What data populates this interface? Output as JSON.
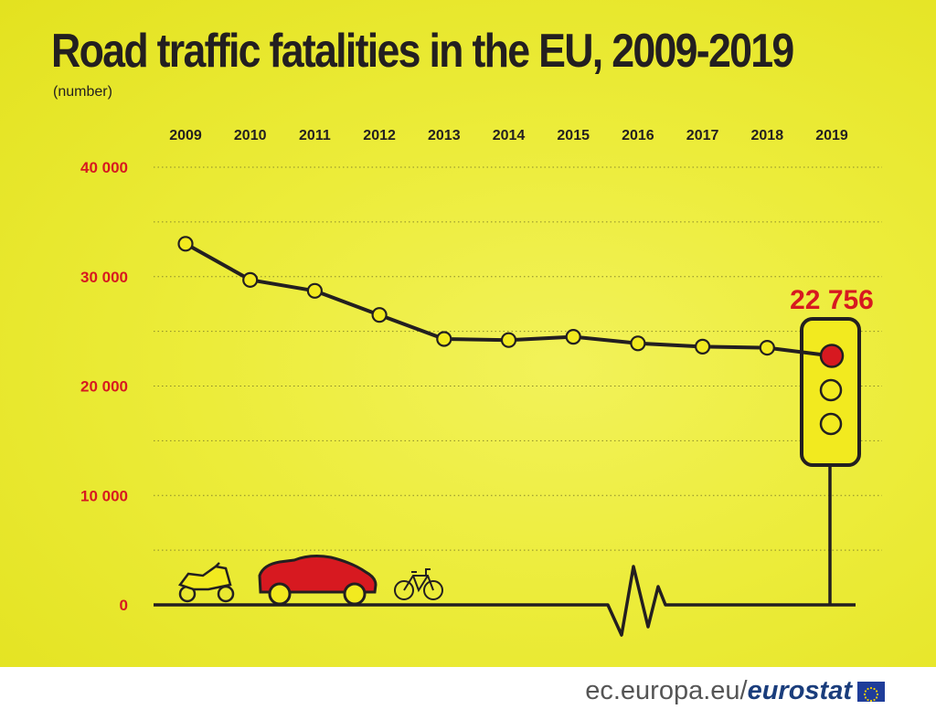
{
  "colors": {
    "background": "#ecec3a",
    "line": "#231f20",
    "marker": "#f2ea1f",
    "highlight": "#d71920",
    "car": "#d71920"
  },
  "icons": [
    "motorbike-icon",
    "car-icon",
    "bicycle-icon",
    "traffic-light-icon",
    "heartbeat-line-icon",
    "eu-flag-icon"
  ],
  "footer": {
    "domain": "ec.europa.eu/",
    "brand": "eurostat"
  },
  "chart_data": {
    "type": "line",
    "title": "Road traffic fatalities in the EU, 2009-2019",
    "ylabel": "(number)",
    "x": [
      "2009",
      "2010",
      "2011",
      "2012",
      "2013",
      "2014",
      "2015",
      "2016",
      "2017",
      "2018",
      "2019"
    ],
    "series": [
      {
        "values": [
          33000,
          29700,
          28700,
          26500,
          24300,
          24200,
          24500,
          23900,
          23600,
          23500,
          22756
        ]
      }
    ],
    "ylim": [
      0,
      40000
    ],
    "yticks": [
      0,
      10000,
      20000,
      30000,
      40000
    ],
    "ytick_labels": [
      "0",
      "10 000",
      "20 000",
      "30 000",
      "40 000"
    ],
    "grid": "horizontal dotted",
    "annotation": "22 756"
  }
}
